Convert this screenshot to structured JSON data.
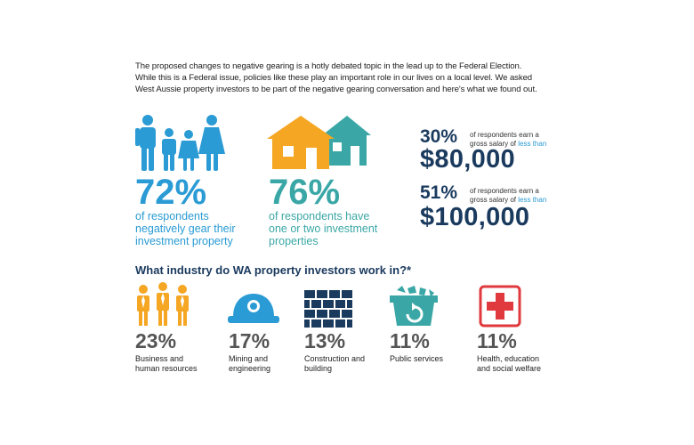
{
  "intro": {
    "line1": "The proposed changes to negative gearing is a hotly debated topic in the lead up to the Federal Election.",
    "line2": "While this is a Federal issue, policies like these play an important role in our lives on a local level. We asked",
    "line3": "West Aussie property investors to be part of the negative gearing conversation and here's what we found out."
  },
  "stat_gearing": {
    "percent": "72%",
    "caption_line1": "of respondents",
    "caption_line2": "negatively gear their",
    "caption_line3": "investment property"
  },
  "stat_properties": {
    "percent": "76%",
    "caption_line1": "of respondents have",
    "caption_line2": "one or two investment",
    "caption_line3": "properties"
  },
  "salary": [
    {
      "percent": "30%",
      "note_prefix": "of respondents earn a",
      "note_line2": "gross salary of ",
      "note_highlight": "less than",
      "amount": "$80,000"
    },
    {
      "percent": "51%",
      "note_prefix": "of respondents earn a",
      "note_line2": "gross salary of ",
      "note_highlight": "less than",
      "amount": "$100,000"
    }
  ],
  "question": "What industry do WA property investors work in?*",
  "industries": [
    {
      "icon": "business-people-icon",
      "percent": "23%",
      "label_line1": "Business and",
      "label_line2": "human resources"
    },
    {
      "icon": "hard-hat-icon",
      "percent": "17%",
      "label_line1": "Mining and",
      "label_line2": "engineering"
    },
    {
      "icon": "brick-wall-icon",
      "percent": "13%",
      "label_line1": "Construction and",
      "label_line2": "building"
    },
    {
      "icon": "recycle-bin-icon",
      "percent": "11%",
      "label_line1": "Public services",
      "label_line2": ""
    },
    {
      "icon": "medical-cross-icon",
      "percent": "11%",
      "label_line1": "Health, education",
      "label_line2": "and social welfare"
    }
  ],
  "colors": {
    "blue": "#2a9bd4",
    "teal": "#3aa7a6",
    "orange": "#f5a623",
    "navy": "#1a3a5e",
    "red": "#e0393e"
  }
}
